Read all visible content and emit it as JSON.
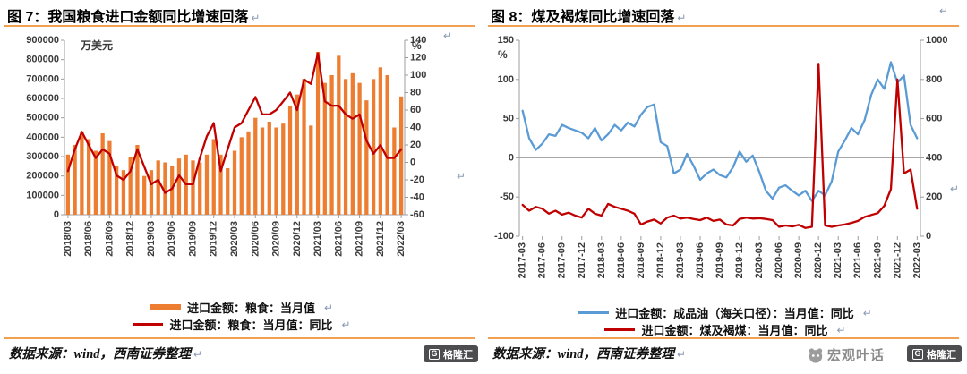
{
  "marks": {
    "return": "↵"
  },
  "panels": [
    {
      "title": "图 7：我国粮食进口金额同比增速回落",
      "source": "数据来源：wind，西南证券整理"
    },
    {
      "title": "图 8：煤及褐煤同比增速回落",
      "source": "数据来源：wind，西南证券整理",
      "watermark": "宏观叶话"
    }
  ],
  "logo": {
    "g_letter": "G",
    "brand": "格隆汇"
  },
  "colors": {
    "bar_orange": "#ED7D31",
    "line_red": "#C00000",
    "line_blue": "#5B9BD5",
    "rule_orange": "#F0A050",
    "axis_gray": "#9c9c9c"
  },
  "chart_data": [
    {
      "type": "bar",
      "title": "我国粮食进口金额同比增速回落",
      "x": [
        "2018/03",
        "2018/04",
        "2018/05",
        "2018/06",
        "2018/07",
        "2018/08",
        "2018/09",
        "2018/10",
        "2018/11",
        "2018/12",
        "2019/01",
        "2019/02",
        "2019/03",
        "2019/04",
        "2019/05",
        "2019/06",
        "2019/07",
        "2019/08",
        "2019/09",
        "2019/10",
        "2019/11",
        "2019/12",
        "2020/01",
        "2020/02",
        "2020/03",
        "2020/04",
        "2020/05",
        "2020/06",
        "2020/07",
        "2020/08",
        "2020/09",
        "2020/10",
        "2020/11",
        "2020/12",
        "2021/01",
        "2021/02",
        "2021/03",
        "2021/04",
        "2021/05",
        "2021/06",
        "2021/07",
        "2021/08",
        "2021/09",
        "2021/10",
        "2021/11",
        "2021/12",
        "2022/01",
        "2022/02",
        "2022/03"
      ],
      "xtick_labels": [
        "2018/03",
        "2018/06",
        "2018/09",
        "2018/12",
        "2019/03",
        "2019/06",
        "2019/09",
        "2019/12",
        "2020/03",
        "2020/06",
        "2020/09",
        "2020/12",
        "2021/03",
        "2021/06",
        "2021/09",
        "2021/12",
        "2022/03"
      ],
      "y_left": {
        "label": "万美元",
        "min": 0,
        "max": 900000,
        "ticks": [
          0,
          100000,
          200000,
          300000,
          400000,
          500000,
          600000,
          700000,
          800000,
          900000
        ]
      },
      "y_right": {
        "label": "%",
        "min": -60,
        "max": 140,
        "ticks": [
          -60,
          -40,
          -20,
          0,
          20,
          40,
          60,
          80,
          100,
          120,
          140
        ]
      },
      "series": [
        {
          "name": "进口金额：粮食：当月值",
          "type": "bar",
          "axis": "left",
          "color": "#ED7D31",
          "values": [
            310000,
            360000,
            430000,
            390000,
            330000,
            420000,
            380000,
            250000,
            230000,
            300000,
            360000,
            200000,
            230000,
            280000,
            270000,
            250000,
            290000,
            310000,
            280000,
            270000,
            310000,
            390000,
            310000,
            240000,
            330000,
            400000,
            430000,
            500000,
            450000,
            480000,
            450000,
            470000,
            560000,
            620000,
            700000,
            460000,
            840000,
            680000,
            720000,
            820000,
            700000,
            730000,
            680000,
            590000,
            700000,
            760000,
            720000,
            450000,
            610000
          ]
        },
        {
          "name": "进口金额：粮食：当月值：同比",
          "type": "line",
          "axis": "right",
          "color": "#C00000",
          "values": [
            -10,
            15,
            35,
            20,
            5,
            15,
            10,
            -15,
            -20,
            -10,
            15,
            -5,
            -25,
            -20,
            -35,
            -30,
            -15,
            -25,
            -25,
            5,
            30,
            45,
            -10,
            15,
            40,
            45,
            60,
            75,
            55,
            55,
            60,
            70,
            80,
            60,
            95,
            90,
            125,
            70,
            65,
            65,
            55,
            50,
            55,
            25,
            10,
            20,
            5,
            5,
            15
          ]
        }
      ]
    },
    {
      "type": "line",
      "title": "煤及褐煤同比增速回落",
      "x": [
        "2017-03",
        "2017-04",
        "2017-05",
        "2017-06",
        "2017-07",
        "2017-08",
        "2017-09",
        "2017-10",
        "2017-11",
        "2017-12",
        "2018-01",
        "2018-02",
        "2018-03",
        "2018-04",
        "2018-05",
        "2018-06",
        "2018-07",
        "2018-08",
        "2018-09",
        "2018-10",
        "2018-11",
        "2018-12",
        "2019-01",
        "2019-02",
        "2019-03",
        "2019-04",
        "2019-05",
        "2019-06",
        "2019-07",
        "2019-08",
        "2019-09",
        "2019-10",
        "2019-11",
        "2019-12",
        "2020-01",
        "2020-02",
        "2020-03",
        "2020-04",
        "2020-05",
        "2020-06",
        "2020-07",
        "2020-08",
        "2020-09",
        "2020-10",
        "2020-11",
        "2020-12",
        "2021-01",
        "2021-02",
        "2021-03",
        "2021-04",
        "2021-05",
        "2021-06",
        "2021-07",
        "2021-08",
        "2021-09",
        "2021-10",
        "2021-11",
        "2021-12",
        "2022-01",
        "2022-02",
        "2022-03"
      ],
      "xtick_labels": [
        "2017-03",
        "2017-06",
        "2017-09",
        "2017-12",
        "2018-03",
        "2018-06",
        "2018-09",
        "2018-12",
        "2019-03",
        "2019-06",
        "2019-09",
        "2019-12",
        "2020-03",
        "2020-06",
        "2020-09",
        "2020-12",
        "2021-03",
        "2021-06",
        "2021-09",
        "2021-12",
        "2022-03"
      ],
      "y_left": {
        "label": "%",
        "min": -100,
        "max": 150,
        "ticks": [
          -100,
          -50,
          0,
          50,
          100,
          150
        ]
      },
      "y_right": {
        "label": "",
        "min": 0,
        "max": 1000,
        "ticks": [
          0,
          200,
          400,
          600,
          800,
          1000
        ]
      },
      "series": [
        {
          "name": "进口金额：成品油（海关口径）：当月值：同比",
          "type": "line",
          "axis": "left",
          "color": "#5B9BD5",
          "values": [
            60,
            25,
            10,
            18,
            30,
            28,
            42,
            38,
            35,
            32,
            25,
            38,
            22,
            30,
            42,
            35,
            45,
            40,
            55,
            65,
            68,
            20,
            15,
            -20,
            -15,
            5,
            -10,
            -28,
            -20,
            -15,
            -22,
            -25,
            -12,
            8,
            -5,
            3,
            -18,
            -42,
            -52,
            -38,
            -35,
            -42,
            -48,
            -42,
            -55,
            -42,
            -48,
            -30,
            8,
            22,
            38,
            30,
            48,
            80,
            100,
            88,
            122,
            96,
            105,
            42,
            25
          ]
        },
        {
          "name": "进口金额：煤及褐煤：当月值：同比",
          "type": "line",
          "axis": "right",
          "color": "#C00000",
          "values": [
            160,
            130,
            150,
            140,
            115,
            130,
            110,
            120,
            105,
            95,
            140,
            115,
            105,
            165,
            150,
            140,
            130,
            115,
            60,
            75,
            85,
            65,
            95,
            105,
            90,
            95,
            88,
            82,
            95,
            78,
            85,
            60,
            55,
            88,
            95,
            90,
            92,
            88,
            82,
            48,
            55,
            50,
            58,
            42,
            48,
            880,
            55,
            48,
            55,
            60,
            68,
            78,
            98,
            108,
            118,
            155,
            240,
            800,
            320,
            340,
            140
          ]
        }
      ]
    }
  ]
}
